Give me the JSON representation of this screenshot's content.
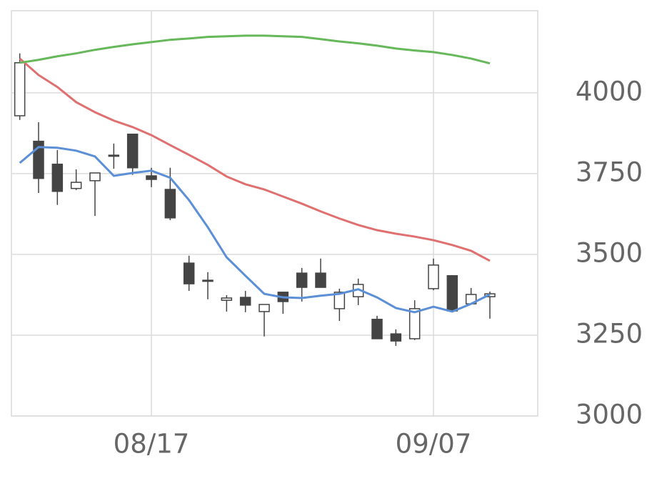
{
  "chart_data": {
    "type": "candlestick",
    "categories": [
      null,
      null,
      null,
      null,
      null,
      null,
      null,
      "08/17",
      null,
      null,
      null,
      null,
      null,
      null,
      null,
      null,
      null,
      null,
      null,
      null,
      null,
      null,
      "09/07",
      null,
      null,
      null
    ],
    "open": [
      3929,
      3850,
      3779,
      3704,
      3728,
      3805,
      3872,
      3743,
      3701,
      3473,
      3420,
      3358,
      3367,
      3323,
      3383,
      3442,
      3442,
      3332,
      3369,
      3299,
      3254,
      3239,
      3394,
      3434,
      3347,
      3369
    ],
    "high": [
      4122,
      3909,
      3823,
      3763,
      3752,
      3843,
      3872,
      3768,
      3768,
      3496,
      3445,
      3374,
      3387,
      3345,
      3383,
      3458,
      3487,
      3394,
      3425,
      3310,
      3268,
      3358,
      3487,
      3436,
      3396,
      3385
    ],
    "low": [
      3916,
      3690,
      3653,
      3699,
      3619,
      3765,
      3746,
      3708,
      3606,
      3387,
      3361,
      3323,
      3321,
      3246,
      3316,
      3354,
      3398,
      3294,
      3343,
      3239,
      3217,
      3235,
      3389,
      3325,
      3347,
      3301
    ],
    "close": [
      4093,
      3735,
      3695,
      3723,
      3752,
      3807,
      3768,
      3732,
      3613,
      3409,
      3418,
      3365,
      3343,
      3345,
      3354,
      3398,
      3398,
      3383,
      3407,
      3239,
      3232,
      3332,
      3467,
      3325,
      3376,
      3378
    ],
    "up_color": "#ffffff",
    "down_color": "#444444",
    "series": [
      {
        "color": "#5b8fd6",
        "values": [
          3783,
          3832,
          3830,
          3821,
          3803,
          3743,
          3752,
          3759,
          3737,
          3668,
          3584,
          3491,
          3434,
          3378,
          3367,
          3365,
          3372,
          3378,
          3392,
          3367,
          3334,
          3321,
          3338,
          3323,
          3347,
          3376
        ]
      },
      {
        "color": "#e07070",
        "values": [
          4106,
          4055,
          4018,
          3971,
          3940,
          3914,
          3894,
          3869,
          3838,
          3808,
          3777,
          3741,
          3717,
          3701,
          3679,
          3657,
          3633,
          3611,
          3591,
          3575,
          3564,
          3555,
          3544,
          3529,
          3511,
          3480
        ]
      },
      {
        "color": "#66b85a",
        "values": [
          4093,
          4102,
          4113,
          4122,
          4133,
          4142,
          4150,
          4157,
          4164,
          4168,
          4173,
          4175,
          4177,
          4177,
          4175,
          4173,
          4166,
          4159,
          4153,
          4146,
          4137,
          4131,
          4126,
          4117,
          4106,
          4091
        ]
      }
    ],
    "ylim": [
      3000,
      4254
    ],
    "yticks": [
      3000,
      3250,
      3500,
      3750,
      4000
    ],
    "grid": true
  }
}
